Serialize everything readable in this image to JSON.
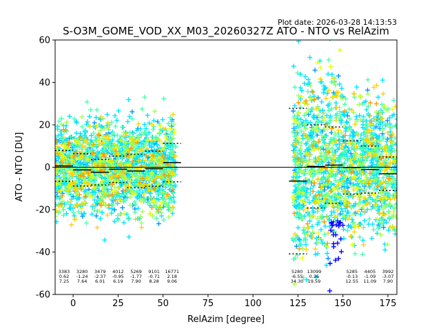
{
  "plot_date": "Plot date: 2026-03-28 14:13:53",
  "chart_data": {
    "type": "scatter",
    "title": "S-O3M_GOME_VOD_XX_M03_20260327Z ATO - NTO vs RelAzim",
    "xlabel": "RelAzim [degree]",
    "ylabel": "ATO - NTO [DU]",
    "xlim": [
      -10,
      180
    ],
    "ylim": [
      -60,
      60
    ],
    "xticks": [
      0,
      25,
      50,
      75,
      100,
      125,
      150,
      175
    ],
    "yticks": [
      -60,
      -40,
      -20,
      0,
      20,
      40,
      60
    ],
    "grid": false,
    "zero_line": 0,
    "colors": [
      "#0000ff",
      "#0091ff",
      "#00e5ff",
      "#48ffad",
      "#9cff5a",
      "#e6ff0d",
      "#ffd400",
      "#ff9a00"
    ],
    "clusters": [
      {
        "x_range": [
          -10,
          57
        ],
        "y_center": 0,
        "y_spread": 20
      },
      {
        "x_range": [
          122,
          180
        ],
        "y_center": 0,
        "y_spread": 30
      }
    ],
    "bins": [
      {
        "x": [
          -10,
          0
        ],
        "mean": 0.62,
        "std": 7.25,
        "count": "3383",
        "stat_mean": "0.62",
        "stat_std": "7.25",
        "label_x": -5
      },
      {
        "x": [
          0,
          10
        ],
        "mean": -1.24,
        "std": 7.64,
        "count": "3280",
        "stat_mean": "-1.24",
        "stat_std": "7.64",
        "label_x": 5
      },
      {
        "x": [
          10,
          20
        ],
        "mean": -2.37,
        "std": 6.01,
        "count": "3479",
        "stat_mean": "-2.37",
        "stat_std": "6.01",
        "label_x": 15
      },
      {
        "x": [
          20,
          30
        ],
        "mean": -0.95,
        "std": 6.19,
        "count": "4012",
        "stat_mean": "-0.95",
        "stat_std": "6.19",
        "label_x": 25
      },
      {
        "x": [
          30,
          40
        ],
        "mean": -1.77,
        "std": 7.9,
        "count": "5269",
        "stat_mean": "-1.77",
        "stat_std": "7.90",
        "label_x": 35
      },
      {
        "x": [
          40,
          50
        ],
        "mean": -0.71,
        "std": 8.28,
        "count": "9101",
        "stat_mean": "-0.71",
        "stat_std": "8.28",
        "label_x": 45
      },
      {
        "x": [
          50,
          60
        ],
        "mean": 2.18,
        "std": 9.06,
        "count": "16771",
        "stat_mean": "2.18",
        "stat_std": "9.06",
        "label_x": 55
      },
      {
        "x": [
          120,
          130
        ],
        "mean": -6.55,
        "std": 34.3,
        "count": "5280",
        "stat_mean": "-6.55",
        "stat_std": "34.30",
        "label_x": 124.5
      },
      {
        "x": [
          130,
          140
        ],
        "mean": 0.36,
        "std": 19.59,
        "count": "13099",
        "stat_mean": "0.36",
        "stat_std": "19.59",
        "label_x": 134
      },
      {
        "x": [
          140,
          150
        ],
        "mean": 1.0,
        "std": 18.0,
        "count": "",
        "stat_mean": "",
        "stat_std": "",
        "label_x": 145
      },
      {
        "x": [
          150,
          160
        ],
        "mean": -0.13,
        "std": 12.55,
        "count": "5285",
        "stat_mean": "-0.13",
        "stat_std": "12.55",
        "label_x": 155
      },
      {
        "x": [
          160,
          170
        ],
        "mean": -1.09,
        "std": 11.09,
        "count": "4405",
        "stat_mean": "-1.09",
        "stat_std": "11.09",
        "label_x": 165
      },
      {
        "x": [
          170,
          180
        ],
        "mean": -3.07,
        "std": 7.9,
        "count": "3992",
        "stat_mean": "-3.07",
        "stat_std": "7.90",
        "label_x": 175
      }
    ]
  }
}
